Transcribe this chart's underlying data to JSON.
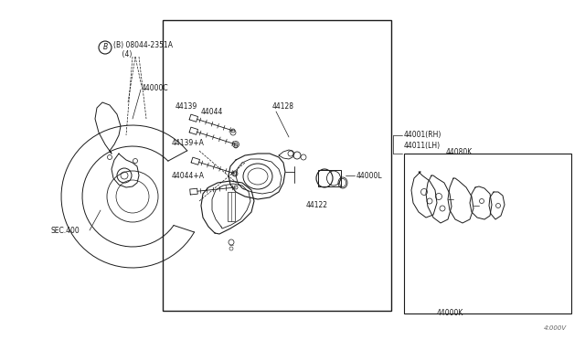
{
  "bg_color": "#ffffff",
  "line_color": "#1a1a1a",
  "figsize": [
    6.4,
    3.72
  ],
  "dpi": 100,
  "watermark": "4:000V",
  "labels": {
    "B_bolt": "(B) 08044-2351A\n    (4)",
    "44000C": "44000C",
    "SEC400": "SEC.400",
    "44139": "44139",
    "44128": "44128",
    "44044": "44044",
    "44139A": "44139+A",
    "44044A": "44044+A",
    "44000L": "44000L",
    "44122": "44122",
    "44001RH": "44001(RH)",
    "44011LH": "44011(LH)",
    "44080K": "44080K",
    "44000K": "44000K"
  }
}
